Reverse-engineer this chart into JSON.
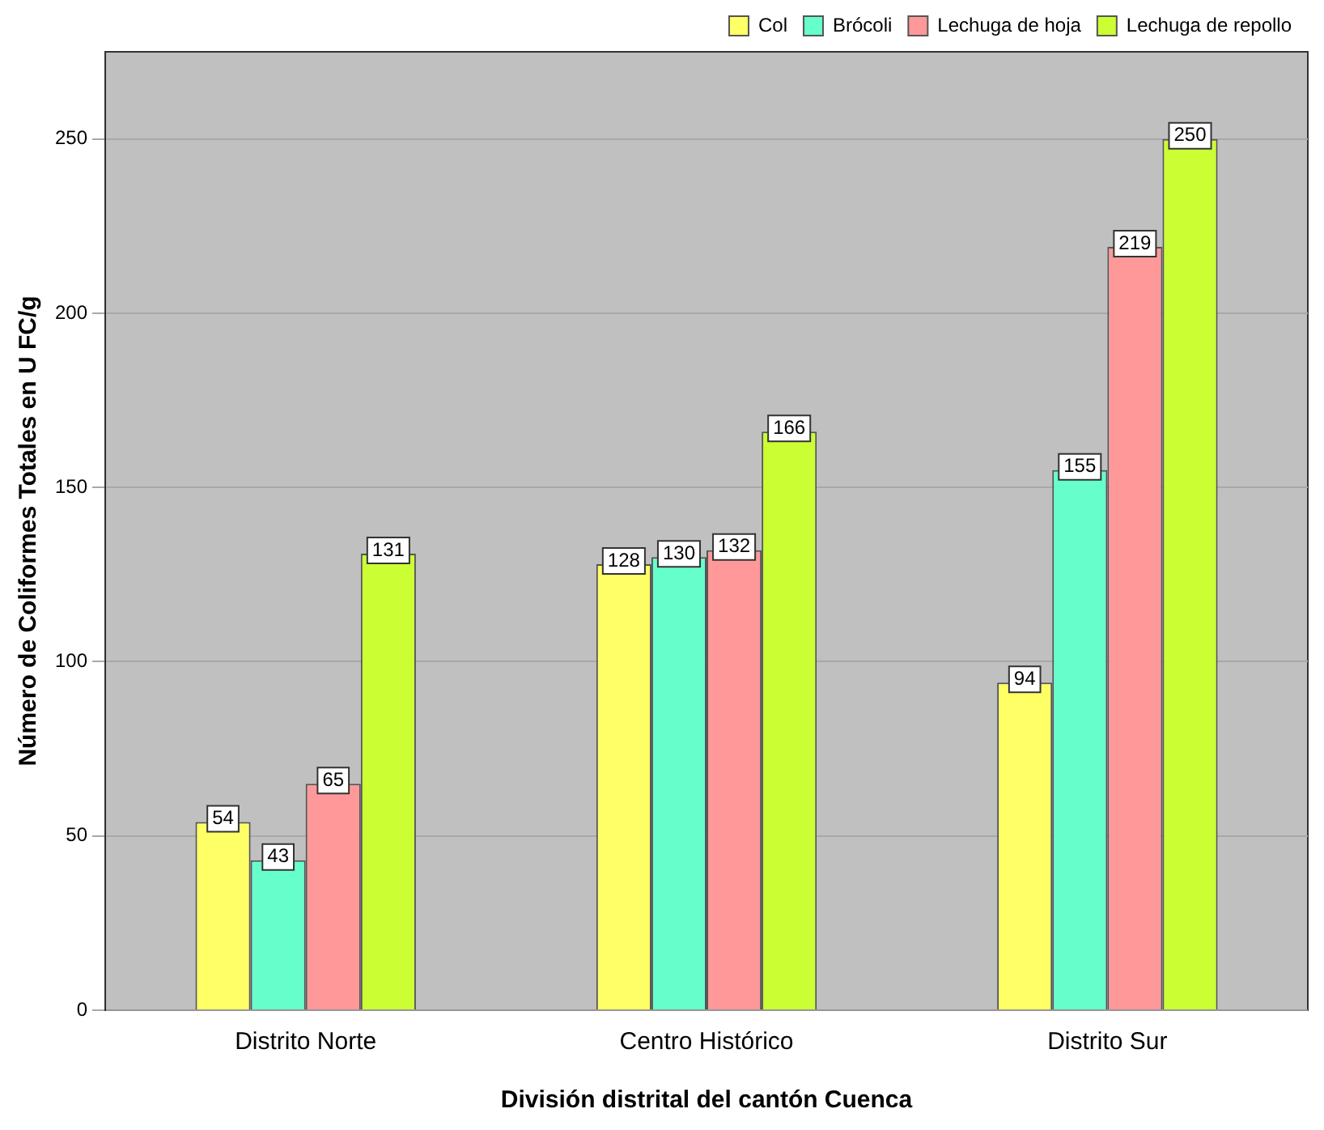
{
  "chart_data": {
    "type": "bar",
    "xlabel": "División distrital del cantón Cuenca",
    "ylabel": "Número de Coliformes Totales en U FC/g",
    "categories": [
      "Distrito Norte",
      "Centro Histórico",
      "Distrito Sur"
    ],
    "series": [
      {
        "name": "Col",
        "color": "#ffff66",
        "values": [
          54,
          128,
          94
        ]
      },
      {
        "name": "Brócoli",
        "color": "#66ffcc",
        "values": [
          43,
          130,
          155
        ]
      },
      {
        "name": "Lechuga de hoja",
        "color": "#ff9999",
        "values": [
          65,
          132,
          219
        ]
      },
      {
        "name": "Lechuga de repollo",
        "color": "#ccff33",
        "values": [
          131,
          166,
          250
        ]
      }
    ],
    "ylim": [
      0,
      275
    ],
    "yticks": [
      0,
      50,
      100,
      150,
      200,
      250
    ],
    "grid": "y",
    "legend": "top right",
    "data_labels": true
  }
}
